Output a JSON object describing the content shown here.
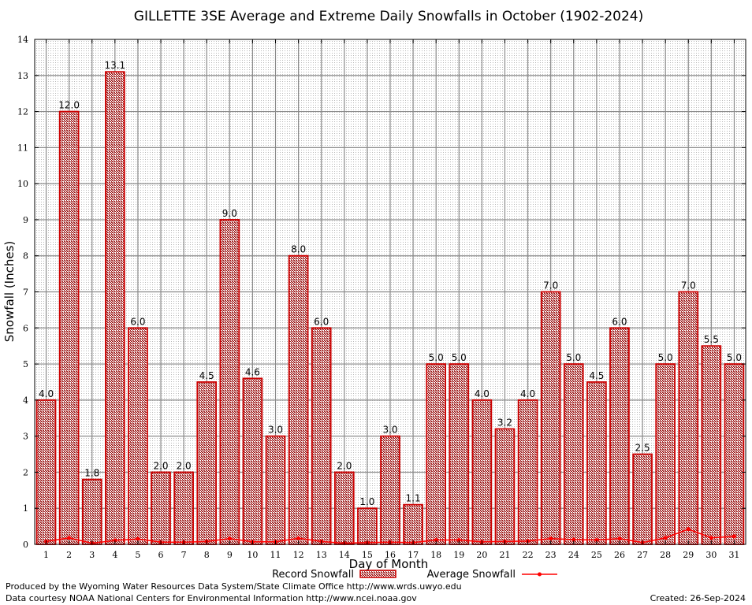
{
  "chart_data": {
    "type": "bar",
    "title": "GILLETTE 3SE Average and Extreme Daily Snowfalls in October (1902-2024)",
    "xlabel": "Day of Month",
    "ylabel": "Snowfall (Inches)",
    "ylim": [
      0,
      14
    ],
    "yticks": [
      "0",
      "1",
      "2",
      "3",
      "4",
      "5",
      "6",
      "7",
      "8",
      "9",
      "10",
      "11",
      "12",
      "13",
      "14"
    ],
    "categories": [
      "1",
      "2",
      "3",
      "4",
      "5",
      "6",
      "7",
      "8",
      "9",
      "10",
      "11",
      "12",
      "13",
      "14",
      "15",
      "16",
      "17",
      "18",
      "19",
      "20",
      "21",
      "22",
      "23",
      "24",
      "25",
      "26",
      "27",
      "28",
      "29",
      "30",
      "31"
    ],
    "grid": true,
    "legend_position": "bottom",
    "series": [
      {
        "name": "Record Snowfall",
        "kind": "bar",
        "color": "#cc0000",
        "values": [
          4.0,
          12.0,
          1.8,
          13.1,
          6.0,
          2.0,
          2.0,
          4.5,
          9.0,
          4.6,
          3.0,
          8.0,
          6.0,
          2.0,
          1.0,
          3.0,
          1.1,
          5.0,
          5.0,
          4.0,
          3.2,
          4.0,
          7.0,
          5.0,
          4.5,
          6.0,
          2.5,
          5.0,
          7.0,
          5.5,
          5.0
        ],
        "labels": [
          "4.0",
          "12.0",
          "1.8",
          "13.1",
          "6.0",
          "2.0",
          "2.0",
          "4.5",
          "9.0",
          "4.6",
          "3.0",
          "8.0",
          "6.0",
          "2.0",
          "1.0",
          "3.0",
          "1.1",
          "5.0",
          "5.0",
          "4.0",
          "3.2",
          "4.0",
          "7.0",
          "5.0",
          "4.5",
          "6.0",
          "2.5",
          "5.0",
          "7.0",
          "5.5",
          "5.0"
        ]
      },
      {
        "name": "Average Snowfall",
        "kind": "line",
        "color": "#ff0000",
        "values": [
          0.08,
          0.18,
          0.03,
          0.11,
          0.15,
          0.06,
          0.06,
          0.08,
          0.16,
          0.07,
          0.07,
          0.17,
          0.08,
          0.03,
          0.05,
          0.06,
          0.05,
          0.12,
          0.12,
          0.07,
          0.08,
          0.09,
          0.16,
          0.13,
          0.12,
          0.16,
          0.05,
          0.18,
          0.42,
          0.18,
          0.22
        ]
      }
    ]
  },
  "footer": {
    "produced": "Produced by the Wyoming Water Resources Data System/State Climate Office http://www.wrds.uwyo.edu",
    "courtesy": "Data courtesy NOAA National Centers for Environmental Information http://www.ncei.noaa.gov",
    "created": "Created:  26-Sep-2024"
  }
}
